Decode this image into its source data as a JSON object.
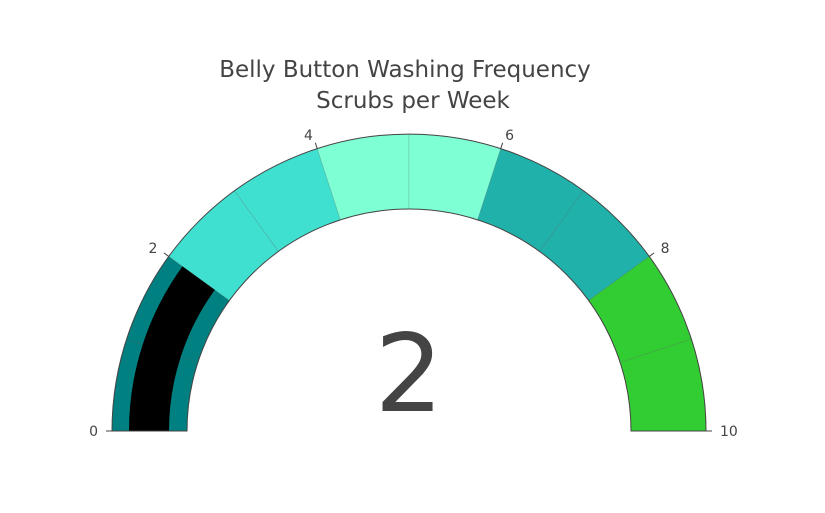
{
  "chart_data": {
    "type": "gauge",
    "title_lines": [
      "Belly Button Washing Frequency",
      "Scrubs per Week"
    ],
    "value": 2,
    "value_label": "2",
    "range": [
      0,
      10
    ],
    "tick_values": [
      0,
      2,
      4,
      6,
      8,
      10
    ],
    "tick_labels": [
      "0",
      "2",
      "4",
      "6",
      "8",
      "10"
    ],
    "bar_color": "#000000",
    "border_color": "#444444",
    "steps": [
      {
        "range": [
          0,
          1
        ],
        "color": "#008080"
      },
      {
        "range": [
          1,
          2
        ],
        "color": "#008080"
      },
      {
        "range": [
          2,
          3
        ],
        "color": "#40E0D0"
      },
      {
        "range": [
          3,
          4
        ],
        "color": "#40E0D0"
      },
      {
        "range": [
          4,
          5
        ],
        "color": "#7FFFD4"
      },
      {
        "range": [
          5,
          6
        ],
        "color": "#7FFFD4"
      },
      {
        "range": [
          6,
          7
        ],
        "color": "#20B2AA"
      },
      {
        "range": [
          7,
          8
        ],
        "color": "#20B2AA"
      },
      {
        "range": [
          8,
          9
        ],
        "color": "#32CD32"
      },
      {
        "range": [
          9,
          10
        ],
        "color": "#32CD32"
      }
    ]
  }
}
